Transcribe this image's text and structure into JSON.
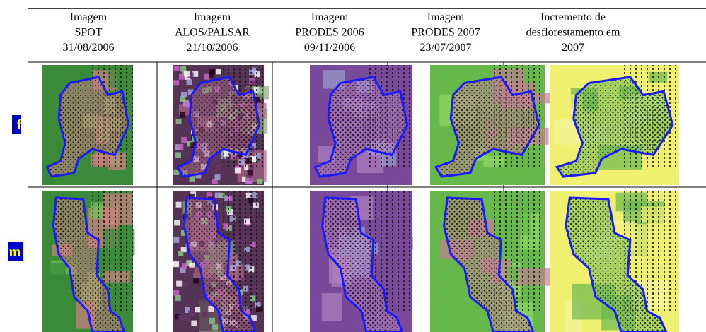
{
  "table": {
    "header": [
      [
        "Imagem",
        "SPOT",
        "31/08/2006"
      ],
      [
        "Imagem",
        "ALOS/PALSAR",
        "21/10/2006"
      ],
      [
        "Imagem",
        "PRODES 2006",
        "09/11/2006"
      ],
      [
        "Imagem",
        "PRODES 2007",
        "23/07/2007"
      ],
      [
        "Incremento de",
        "desflorestamento em",
        "2007"
      ]
    ],
    "rows": [
      {
        "label": "f"
      },
      {
        "label": "m"
      }
    ]
  }
}
